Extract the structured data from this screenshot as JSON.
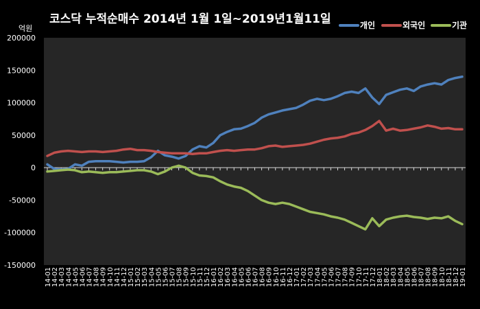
{
  "chart_data": {
    "type": "line",
    "title": "코스닥 누적순매수 2014년 1월 1일~2019년1월11일",
    "unit_label": "억원",
    "ylim": [
      -150000,
      200000
    ],
    "y_ticks": [
      -150000,
      -100000,
      -50000,
      0,
      50000,
      100000,
      150000,
      200000
    ],
    "y_tick_labels": [
      "-150000",
      "-100000",
      "-50000",
      "0",
      "50000",
      "100000",
      "150000",
      "200000"
    ],
    "x_ticks": [
      "14-01",
      "14-02",
      "14-03",
      "14-04",
      "14-05",
      "14-06",
      "14-07",
      "14-08",
      "14-09",
      "14-10",
      "14-11",
      "14-12",
      "15-01",
      "15-02",
      "15-03",
      "15-04",
      "15-05",
      "15-06",
      "15-07",
      "15-08",
      "15-09",
      "15-10",
      "15-11",
      "15-12",
      "16-01",
      "16-02",
      "16-03",
      "16-04",
      "16-05",
      "16-06",
      "16-07",
      "16-08",
      "16-09",
      "16-10",
      "16-11",
      "16-12",
      "17-01",
      "17-02",
      "17-03",
      "17-04",
      "17-05",
      "17-06",
      "17-07",
      "17-08",
      "17-09",
      "17-10",
      "17-11",
      "17-12",
      "18-01",
      "18-02",
      "18-03",
      "18-04",
      "18-05",
      "18-06",
      "18-07",
      "18-08",
      "18-09",
      "18-10",
      "18-11",
      "18-12",
      "19-01"
    ],
    "legend_position": "top-right",
    "series": [
      {
        "name": "개인",
        "color": "#4f81bd",
        "values": [
          5000,
          -2000,
          -3000,
          -2000,
          5000,
          3000,
          9000,
          10000,
          10000,
          10000,
          9000,
          8000,
          9000,
          9000,
          10000,
          16000,
          26000,
          19000,
          17000,
          14000,
          18000,
          28000,
          33000,
          31000,
          38000,
          50000,
          55000,
          59000,
          60000,
          64000,
          69000,
          77000,
          82000,
          85000,
          88000,
          90000,
          92000,
          97000,
          103000,
          106000,
          104000,
          106000,
          110000,
          115000,
          117000,
          115000,
          122000,
          108000,
          98000,
          112000,
          116000,
          120000,
          122000,
          118000,
          125000,
          128000,
          130000,
          128000,
          135000,
          138000,
          140000
        ]
      },
      {
        "name": "외국인",
        "color": "#c0504d",
        "values": [
          18000,
          23000,
          25000,
          26000,
          25000,
          24000,
          25000,
          25000,
          24000,
          25000,
          26000,
          28000,
          29000,
          27000,
          27000,
          26000,
          24000,
          23000,
          22000,
          22000,
          22000,
          21000,
          22000,
          22000,
          24000,
          26000,
          27000,
          26000,
          27000,
          28000,
          28000,
          30000,
          33000,
          34000,
          32000,
          33000,
          34000,
          35000,
          37000,
          40000,
          43000,
          45000,
          46000,
          48000,
          52000,
          54000,
          58000,
          64000,
          72000,
          57000,
          60000,
          57000,
          58000,
          60000,
          62000,
          65000,
          63000,
          60000,
          61000,
          59000,
          59000
        ]
      },
      {
        "name": "기관",
        "color": "#9bbb59",
        "values": [
          -6000,
          -5000,
          -4000,
          -3000,
          -4000,
          -7000,
          -6000,
          -7000,
          -8000,
          -7000,
          -7000,
          -6000,
          -5000,
          -4000,
          -4000,
          -6000,
          -10000,
          -6000,
          0,
          3000,
          0,
          -8000,
          -12000,
          -13000,
          -15000,
          -21000,
          -26000,
          -29000,
          -31000,
          -36000,
          -43000,
          -50000,
          -54000,
          -56000,
          -54000,
          -56000,
          -60000,
          -64000,
          -68000,
          -70000,
          -72000,
          -75000,
          -77000,
          -80000,
          -85000,
          -90000,
          -95000,
          -78000,
          -90000,
          -80000,
          -77000,
          -75000,
          -74000,
          -76000,
          -77000,
          -79000,
          -77000,
          -78000,
          -75000,
          -82000,
          -87000
        ]
      }
    ]
  }
}
